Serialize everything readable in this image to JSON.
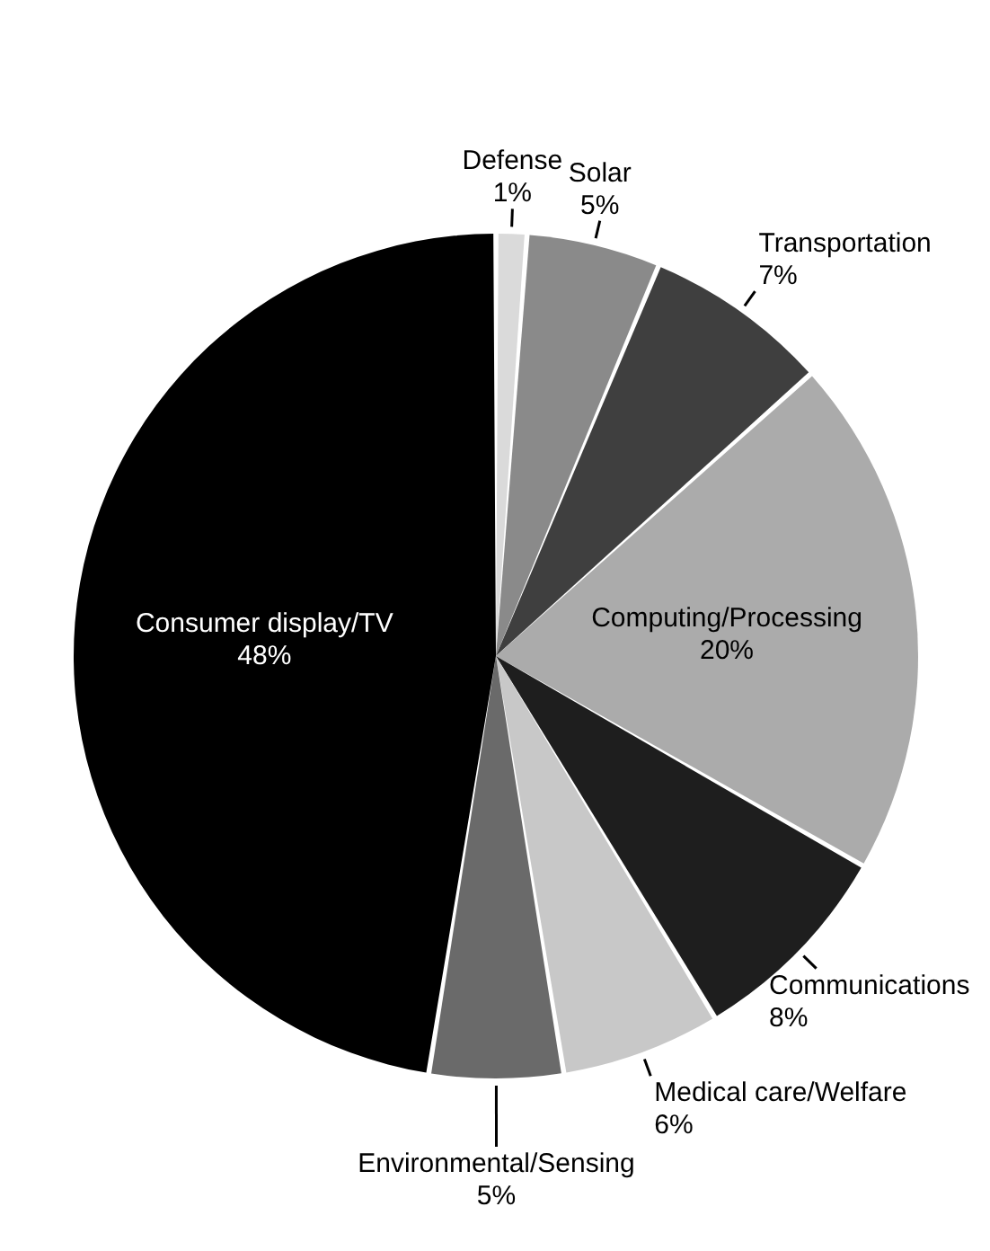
{
  "chart_data": {
    "type": "pie",
    "categories": [
      "Defense",
      "Solar",
      "Transportation",
      "Computing/Processing",
      "Communications",
      "Medical care/Welfare",
      "Environmental/Sensing",
      "Consumer display/TV"
    ],
    "values": [
      1,
      5,
      7,
      20,
      8,
      6,
      5,
      48
    ],
    "value_labels": [
      "1%",
      "5%",
      "7%",
      "20%",
      "8%",
      "6%",
      "5%",
      "48%"
    ],
    "colors": [
      "#dadada",
      "#8a8a8a",
      "#3f3f3f",
      "#ababab",
      "#1e1e1e",
      "#c8c8c8",
      "#6a6a6a",
      "#000000"
    ]
  }
}
